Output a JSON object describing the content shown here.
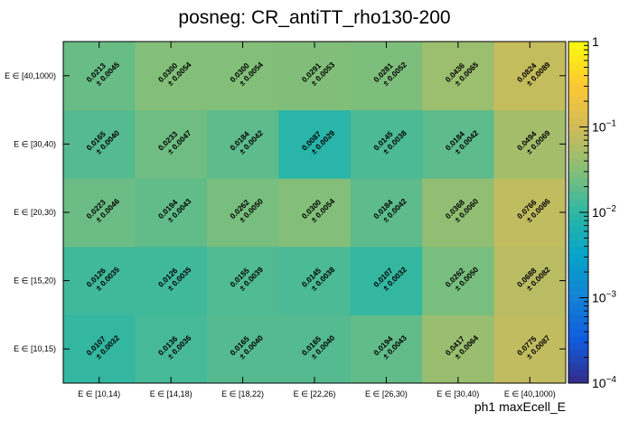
{
  "chart_data": {
    "type": "heatmap",
    "title": "posneg: CR_antiTT_rho130-200",
    "xlabel": "ph1 maxEcell_E",
    "ylabel": "",
    "x_categories": [
      "E ∈ [10,14)",
      "E ∈ [14,18)",
      "E ∈ [18,22)",
      "E ∈ [22,26)",
      "E ∈ [26,30)",
      "E ∈ [30,40)",
      "E ∈ [40,1000)"
    ],
    "y_categories": [
      "E ∈ [10,15)",
      "E ∈ [15,20)",
      "E ∈ [20,30)",
      "E ∈ [30,40)",
      "E ∈ [40,1000)"
    ],
    "values": [
      [
        0.0107,
        0.0136,
        0.0165,
        0.0165,
        0.0194,
        0.0417,
        0.0775
      ],
      [
        0.0126,
        0.0126,
        0.0155,
        0.0145,
        0.0107,
        0.0262,
        0.0688
      ],
      [
        0.0223,
        0.0194,
        0.0262,
        0.03,
        0.0184,
        0.0368,
        0.0766
      ],
      [
        0.0165,
        0.0233,
        0.0184,
        0.0087,
        0.0145,
        0.0184,
        0.0494
      ],
      [
        0.0213,
        0.03,
        0.03,
        0.0291,
        0.0281,
        0.0436,
        0.0824
      ]
    ],
    "errors": [
      [
        0.0032,
        0.0036,
        0.004,
        0.004,
        0.0043,
        0.0064,
        0.0087
      ],
      [
        0.0035,
        0.0035,
        0.0039,
        0.0038,
        0.0032,
        0.005,
        0.0082
      ],
      [
        0.0046,
        0.0043,
        0.005,
        0.0054,
        0.0042,
        0.006,
        0.0086
      ],
      [
        0.004,
        0.0047,
        0.0042,
        0.0029,
        0.0038,
        0.0042,
        0.0069
      ],
      [
        0.0045,
        0.0054,
        0.0054,
        0.0053,
        0.0052,
        0.0065,
        0.0089
      ]
    ],
    "value_labels": [
      [
        "0.0107",
        "0.0136",
        "0.0165",
        "0.0165",
        "0.0194",
        "0.0417",
        "0.0775"
      ],
      [
        "0.0126",
        "0.0126",
        "0.0155",
        "0.0145",
        "0.0107",
        "0.0262",
        "0.0688"
      ],
      [
        "0.0223",
        "0.0194",
        "0.0262",
        "0.0300",
        "0.0184",
        "0.0368",
        "0.0766"
      ],
      [
        "0.0165",
        "0.0233",
        "0.0184",
        "0.0087",
        "0.0145",
        "0.0184",
        "0.0494"
      ],
      [
        "0.0213",
        "0.0300",
        "0.0300",
        "0.0291",
        "0.0281",
        "0.0436",
        "0.0824"
      ]
    ],
    "error_labels": [
      [
        "± 0.0032",
        "± 0.0036",
        "± 0.0040",
        "± 0.0040",
        "± 0.0043",
        "± 0.0064",
        "± 0.0087"
      ],
      [
        "± 0.0035",
        "± 0.0035",
        "± 0.0039",
        "± 0.0038",
        "± 0.0032",
        "± 0.0050",
        "± 0.0082"
      ],
      [
        "± 0.0046",
        "± 0.0043",
        "± 0.0050",
        "± 0.0054",
        "± 0.0042",
        "± 0.0060",
        "± 0.0086"
      ],
      [
        "± 0.0040",
        "± 0.0047",
        "± 0.0042",
        "± 0.0029",
        "± 0.0038",
        "± 0.0042",
        "± 0.0069"
      ],
      [
        "± 0.0045",
        "± 0.0054",
        "± 0.0054",
        "± 0.0053",
        "± 0.0052",
        "± 0.0065",
        "± 0.0089"
      ]
    ],
    "colorbar": {
      "scale": "log",
      "range": [
        0.0001,
        1
      ],
      "tick_values": [
        0.0001,
        0.001,
        0.01,
        0.1,
        1
      ],
      "tick_labels": [
        {
          "base": "10",
          "exp": "−4"
        },
        {
          "base": "10",
          "exp": "−3"
        },
        {
          "base": "10",
          "exp": "−2"
        },
        {
          "base": "10",
          "exp": "−1"
        },
        {
          "base": "1",
          "exp": ""
        }
      ],
      "palette": [
        "#352a87",
        "#0f5cdd",
        "#1481d6",
        "#06a4ca",
        "#2eb7a4",
        "#87bf77",
        "#d1bb59",
        "#fec832",
        "#f9fb0e"
      ]
    }
  }
}
